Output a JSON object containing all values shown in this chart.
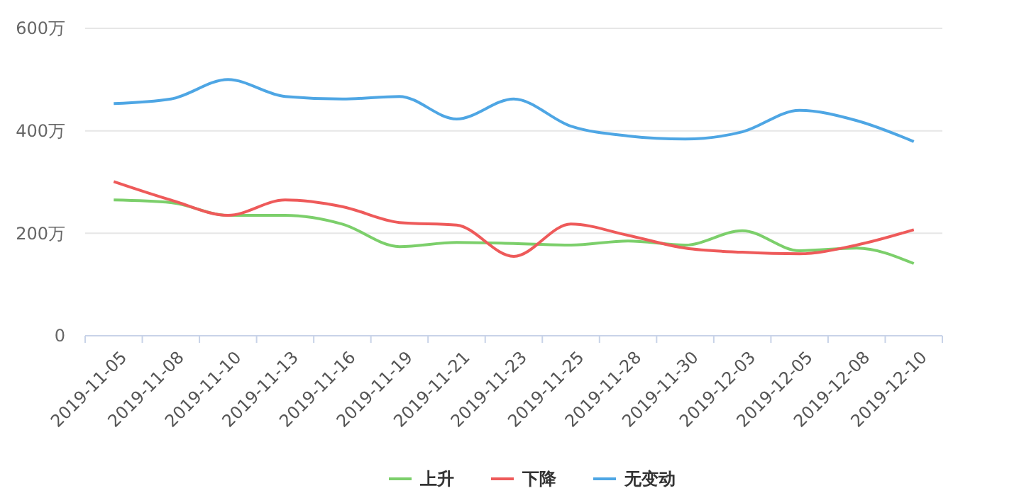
{
  "chart_data": {
    "type": "line",
    "categories": [
      "2019-11-05",
      "2019-11-08",
      "2019-11-10",
      "2019-11-13",
      "2019-11-16",
      "2019-11-19",
      "2019-11-21",
      "2019-11-23",
      "2019-11-25",
      "2019-11-28",
      "2019-11-30",
      "2019-12-03",
      "2019-12-05",
      "2019-12-08",
      "2019-12-10"
    ],
    "series": [
      {
        "name": "上升",
        "color": "#7ccf6b",
        "values": [
          265,
          260,
          235,
          235,
          218,
          174,
          182,
          180,
          177,
          185,
          177,
          205,
          166,
          171,
          141
        ]
      },
      {
        "name": "下降",
        "color": "#ee5a5a",
        "values": [
          301,
          265,
          235,
          265,
          252,
          221,
          216,
          155,
          218,
          196,
          171,
          163,
          160,
          177,
          207
        ]
      },
      {
        "name": "无变动",
        "color": "#4ea6e4",
        "values": [
          453,
          462,
          500,
          467,
          462,
          467,
          423,
          462,
          409,
          390,
          384,
          398,
          440,
          420,
          379
        ]
      }
    ],
    "ylim": [
      0,
      600
    ],
    "yticks": [
      0,
      {
        "value": 200,
        "label": "200万"
      },
      {
        "value": 400,
        "label": "400万"
      },
      {
        "value": 600,
        "label": "600万"
      }
    ],
    "grid": "y",
    "legend": "bottom",
    "marker": "none",
    "line_style": "solid"
  }
}
